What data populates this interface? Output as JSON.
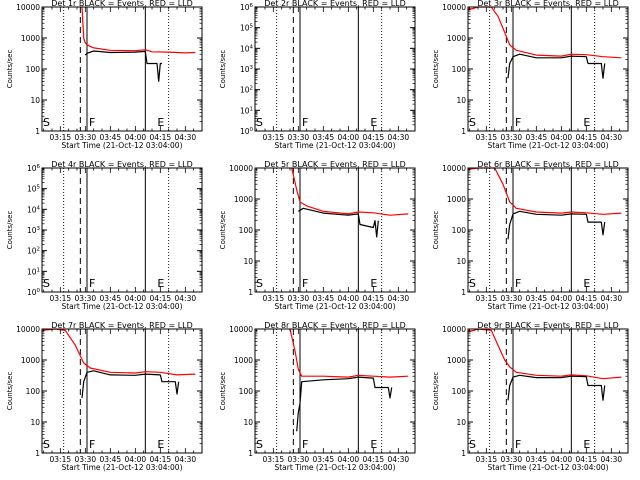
{
  "figure": {
    "xlabel": "Start Time (21-Oct-12 03:04:00)",
    "ylabel": "Counts/sec",
    "x_tick_labels": [
      "03:15",
      "03:30",
      "03:45",
      "04:00",
      "04:15",
      "04:30"
    ],
    "colors": {
      "events": "#000000",
      "lld": "#ff0000",
      "axes": "#000000",
      "background": "#ffffff"
    }
  },
  "chart_data": [
    {
      "type": "line",
      "title": "Det 1r BLACK = Events, RED = LLD",
      "x_range": [
        "03:04",
        "04:40"
      ],
      "ylim": [
        1,
        10000
      ],
      "y_scale": "log",
      "y_tick_labels": [
        "1",
        "10",
        "100",
        "1000",
        "10000"
      ],
      "markers": {
        "S": "03:04",
        "F": "03:31",
        "E": "04:15"
      },
      "dotted_lines": [
        "03:17",
        "04:20"
      ],
      "dashed_lines": [
        "03:27"
      ],
      "solid_lines": [
        "03:31",
        "04:06"
      ],
      "series": [
        {
          "name": "LLD",
          "color": "#ff0000",
          "points": [
            [
              "03:28",
              10000
            ],
            [
              "03:29",
              1000
            ],
            [
              "03:30",
              700
            ],
            [
              "03:31",
              600
            ],
            [
              "03:35",
              480
            ],
            [
              "03:45",
              400
            ],
            [
              "04:00",
              390
            ],
            [
              "04:06",
              420
            ],
            [
              "04:10",
              360
            ],
            [
              "04:20",
              350
            ],
            [
              "04:30",
              330
            ],
            [
              "04:36",
              340
            ]
          ]
        },
        {
          "name": "Events",
          "color": "#000000",
          "points": [
            [
              "03:30",
              280
            ],
            [
              "03:31",
              320
            ],
            [
              "03:35",
              380
            ],
            [
              "03:45",
              340
            ],
            [
              "04:00",
              350
            ],
            [
              "04:06",
              370
            ],
            [
              "04:07",
              150
            ],
            [
              "04:10",
              150
            ],
            [
              "04:13",
              150
            ],
            [
              "04:14",
              40
            ],
            [
              "04:15",
              150
            ],
            [
              "04:16",
              150
            ]
          ]
        }
      ]
    },
    {
      "type": "line",
      "title": "Det 2r BLACK = Events, RED = LLD",
      "x_range": [
        "03:04",
        "04:40"
      ],
      "ylim": [
        1,
        1000000
      ],
      "y_scale": "log",
      "y_tick_labels": [
        "10^0",
        "10^1",
        "10^2",
        "10^3",
        "10^4",
        "10^5",
        "10^6"
      ],
      "markers": {
        "S": "03:04",
        "F": "03:31",
        "E": "04:15"
      },
      "dotted_lines": [
        "03:17",
        "04:20"
      ],
      "dashed_lines": [
        "03:27"
      ],
      "solid_lines": [
        "03:31",
        "04:06"
      ],
      "series": []
    },
    {
      "type": "line",
      "title": "Det 3r BLACK = Events, RED = LLD",
      "x_range": [
        "03:04",
        "04:40"
      ],
      "ylim": [
        1,
        10000
      ],
      "y_scale": "log",
      "y_tick_labels": [
        "1",
        "10",
        "100",
        "1000",
        "10000"
      ],
      "markers": {
        "S": "03:04",
        "F": "03:31",
        "E": "04:15"
      },
      "dotted_lines": [
        "03:17",
        "04:20"
      ],
      "dashed_lines": [
        "03:27"
      ],
      "solid_lines": [
        "03:31",
        "04:06"
      ],
      "series": [
        {
          "name": "LLD",
          "color": "#ff0000",
          "points": [
            [
              "03:04",
              8000
            ],
            [
              "03:10",
              10000
            ],
            [
              "03:18",
              10000
            ],
            [
              "03:22",
              5000
            ],
            [
              "03:26",
              1500
            ],
            [
              "03:29",
              600
            ],
            [
              "03:33",
              400
            ],
            [
              "03:45",
              280
            ],
            [
              "04:00",
              260
            ],
            [
              "04:06",
              300
            ],
            [
              "04:15",
              290
            ],
            [
              "04:25",
              250
            ],
            [
              "04:36",
              230
            ]
          ]
        },
        {
          "name": "Events",
          "color": "#000000",
          "points": [
            [
              "03:28",
              50
            ],
            [
              "03:29",
              150
            ],
            [
              "03:31",
              250
            ],
            [
              "03:35",
              300
            ],
            [
              "03:45",
              230
            ],
            [
              "04:00",
              230
            ],
            [
              "04:06",
              260
            ],
            [
              "04:15",
              250
            ],
            [
              "04:16",
              150
            ],
            [
              "04:24",
              150
            ],
            [
              "04:25",
              50
            ],
            [
              "04:26",
              150
            ]
          ]
        }
      ]
    },
    {
      "type": "line",
      "title": "Det 4r BLACK = Events, RED = LLD",
      "x_range": [
        "03:04",
        "04:40"
      ],
      "ylim": [
        1,
        1000000
      ],
      "y_scale": "log",
      "y_tick_labels": [
        "10^0",
        "10^1",
        "10^2",
        "10^3",
        "10^4",
        "10^5",
        "10^6"
      ],
      "markers": {
        "S": "03:04",
        "F": "03:31",
        "E": "04:15"
      },
      "dotted_lines": [
        "03:17",
        "04:20"
      ],
      "dashed_lines": [
        "03:27"
      ],
      "solid_lines": [
        "03:31",
        "04:06"
      ],
      "series": []
    },
    {
      "type": "line",
      "title": "Det 5r BLACK = Events, RED = LLD",
      "x_range": [
        "03:04",
        "04:40"
      ],
      "ylim": [
        1,
        10000
      ],
      "y_scale": "log",
      "y_tick_labels": [
        "1",
        "10",
        "100",
        "1000",
        "10000"
      ],
      "markers": {
        "S": "03:04",
        "F": "03:31",
        "E": "04:15"
      },
      "dotted_lines": [
        "03:17",
        "04:20"
      ],
      "dashed_lines": [
        "03:27"
      ],
      "solid_lines": [
        "03:31",
        "04:06"
      ],
      "series": [
        {
          "name": "LLD",
          "color": "#ff0000",
          "points": [
            [
              "03:26",
              10000
            ],
            [
              "03:29",
              2000
            ],
            [
              "03:31",
              800
            ],
            [
              "03:35",
              600
            ],
            [
              "03:45",
              400
            ],
            [
              "04:00",
              330
            ],
            [
              "04:06",
              380
            ],
            [
              "04:15",
              360
            ],
            [
              "04:25",
              300
            ],
            [
              "04:36",
              330
            ]
          ]
        },
        {
          "name": "Events",
          "color": "#000000",
          "points": [
            [
              "03:30",
              400
            ],
            [
              "03:33",
              500
            ],
            [
              "03:45",
              350
            ],
            [
              "04:00",
              300
            ],
            [
              "04:06",
              330
            ],
            [
              "04:07",
              150
            ],
            [
              "04:15",
              120
            ],
            [
              "04:16",
              200
            ],
            [
              "04:17",
              60
            ],
            [
              "04:18",
              200
            ]
          ]
        }
      ]
    },
    {
      "type": "line",
      "title": "Det 6r BLACK = Events, RED = LLD",
      "x_range": [
        "03:04",
        "04:40"
      ],
      "ylim": [
        1,
        10000
      ],
      "y_scale": "log",
      "y_tick_labels": [
        "1",
        "10",
        "100",
        "1000",
        "10000"
      ],
      "markers": {
        "S": "03:04",
        "F": "03:31",
        "E": "04:15"
      },
      "dotted_lines": [
        "03:17",
        "04:20"
      ],
      "dashed_lines": [
        "03:27"
      ],
      "solid_lines": [
        "03:31",
        "04:06"
      ],
      "series": [
        {
          "name": "LLD",
          "color": "#ff0000",
          "points": [
            [
              "03:04",
              9000
            ],
            [
              "03:10",
              10000
            ],
            [
              "03:20",
              10000
            ],
            [
              "03:25",
              3000
            ],
            [
              "03:29",
              800
            ],
            [
              "03:33",
              500
            ],
            [
              "03:45",
              380
            ],
            [
              "04:00",
              350
            ],
            [
              "04:06",
              380
            ],
            [
              "04:15",
              360
            ],
            [
              "04:25",
              320
            ],
            [
              "04:36",
              350
            ]
          ]
        },
        {
          "name": "Events",
          "color": "#000000",
          "points": [
            [
              "03:28",
              50
            ],
            [
              "03:29",
              150
            ],
            [
              "03:31",
              330
            ],
            [
              "03:35",
              400
            ],
            [
              "03:45",
              320
            ],
            [
              "04:00",
              300
            ],
            [
              "04:06",
              330
            ],
            [
              "04:15",
              320
            ],
            [
              "04:16",
              180
            ],
            [
              "04:24",
              180
            ],
            [
              "04:25",
              70
            ],
            [
              "04:26",
              180
            ]
          ]
        }
      ]
    },
    {
      "type": "line",
      "title": "Det 7r BLACK = Events, RED = LLD",
      "x_range": [
        "03:04",
        "04:40"
      ],
      "ylim": [
        1,
        10000
      ],
      "y_scale": "log",
      "y_tick_labels": [
        "1",
        "10",
        "100",
        "1000",
        "10000"
      ],
      "markers": {
        "S": "03:04",
        "F": "03:31",
        "E": "04:15"
      },
      "dotted_lines": [
        "03:17",
        "04:20"
      ],
      "dashed_lines": [
        "03:27"
      ],
      "solid_lines": [
        "03:31",
        "04:06"
      ],
      "series": [
        {
          "name": "LLD",
          "color": "#ff0000",
          "points": [
            [
              "03:04",
              9000
            ],
            [
              "03:12",
              10000
            ],
            [
              "03:18",
              9000
            ],
            [
              "03:24",
              3000
            ],
            [
              "03:29",
              800
            ],
            [
              "03:33",
              550
            ],
            [
              "03:45",
              400
            ],
            [
              "04:00",
              380
            ],
            [
              "04:06",
              420
            ],
            [
              "04:15",
              400
            ],
            [
              "04:25",
              330
            ],
            [
              "04:36",
              350
            ]
          ]
        },
        {
          "name": "Events",
          "color": "#000000",
          "points": [
            [
              "03:28",
              60
            ],
            [
              "03:29",
              200
            ],
            [
              "03:31",
              400
            ],
            [
              "03:35",
              450
            ],
            [
              "03:45",
              330
            ],
            [
              "04:00",
              320
            ],
            [
              "04:06",
              350
            ],
            [
              "04:15",
              330
            ],
            [
              "04:16",
              200
            ],
            [
              "04:24",
              200
            ],
            [
              "04:25",
              80
            ],
            [
              "04:26",
              200
            ]
          ]
        }
      ]
    },
    {
      "type": "line",
      "title": "Det 8r BLACK = Events, RED = LLD",
      "x_range": [
        "03:04",
        "04:40"
      ],
      "ylim": [
        1,
        10000
      ],
      "y_scale": "log",
      "y_tick_labels": [
        "1",
        "10",
        "100",
        "1000",
        "10000"
      ],
      "markers": {
        "S": "03:04",
        "F": "03:31",
        "E": "04:15"
      },
      "dotted_lines": [
        "03:17",
        "04:20"
      ],
      "dashed_lines": [
        "03:27"
      ],
      "solid_lines": [
        "03:31",
        "04:06"
      ],
      "series": [
        {
          "name": "LLD",
          "color": "#ff0000",
          "points": [
            [
              "03:25",
              10000
            ],
            [
              "03:28",
              2000
            ],
            [
              "03:30",
              500
            ],
            [
              "03:32",
              300
            ],
            [
              "03:45",
              300
            ],
            [
              "04:00",
              280
            ],
            [
              "04:06",
              320
            ],
            [
              "04:15",
              300
            ],
            [
              "04:25",
              280
            ],
            [
              "04:36",
              300
            ]
          ]
        },
        {
          "name": "Events",
          "color": "#000000",
          "points": [
            [
              "03:29",
              5
            ],
            [
              "03:30",
              20
            ],
            [
              "03:31",
              40
            ],
            [
              "03:32",
              200
            ],
            [
              "03:45",
              230
            ],
            [
              "04:00",
              250
            ],
            [
              "04:06",
              280
            ],
            [
              "04:15",
              260
            ],
            [
              "04:16",
              130
            ],
            [
              "04:24",
              130
            ],
            [
              "04:25",
              60
            ],
            [
              "04:26",
              130
            ]
          ]
        }
      ]
    },
    {
      "type": "line",
      "title": "Det 9r BLACK = Events, RED = LLD",
      "x_range": [
        "03:04",
        "04:40"
      ],
      "ylim": [
        1,
        10000
      ],
      "y_scale": "log",
      "y_tick_labels": [
        "1",
        "10",
        "100",
        "1000",
        "10000"
      ],
      "markers": {
        "S": "03:04",
        "F": "03:31",
        "E": "04:15"
      },
      "dotted_lines": [
        "03:17",
        "04:20"
      ],
      "dashed_lines": [
        "03:27"
      ],
      "solid_lines": [
        "03:31",
        "04:06"
      ],
      "series": [
        {
          "name": "LLD",
          "color": "#ff0000",
          "points": [
            [
              "03:04",
              8000
            ],
            [
              "03:10",
              10000
            ],
            [
              "03:18",
              9000
            ],
            [
              "03:22",
              3000
            ],
            [
              "03:26",
              1000
            ],
            [
              "03:29",
              600
            ],
            [
              "03:33",
              400
            ],
            [
              "03:45",
              320
            ],
            [
              "04:00",
              300
            ],
            [
              "04:06",
              330
            ],
            [
              "04:15",
              310
            ],
            [
              "04:25",
              250
            ],
            [
              "04:36",
              280
            ]
          ]
        },
        {
          "name": "Events",
          "color": "#000000",
          "points": [
            [
              "03:28",
              50
            ],
            [
              "03:29",
              150
            ],
            [
              "03:31",
              280
            ],
            [
              "03:35",
              320
            ],
            [
              "03:45",
              270
            ],
            [
              "04:00",
              270
            ],
            [
              "04:06",
              300
            ],
            [
              "04:15",
              290
            ],
            [
              "04:16",
              150
            ],
            [
              "04:24",
              150
            ],
            [
              "04:25",
              50
            ],
            [
              "04:26",
              150
            ]
          ]
        }
      ]
    }
  ]
}
